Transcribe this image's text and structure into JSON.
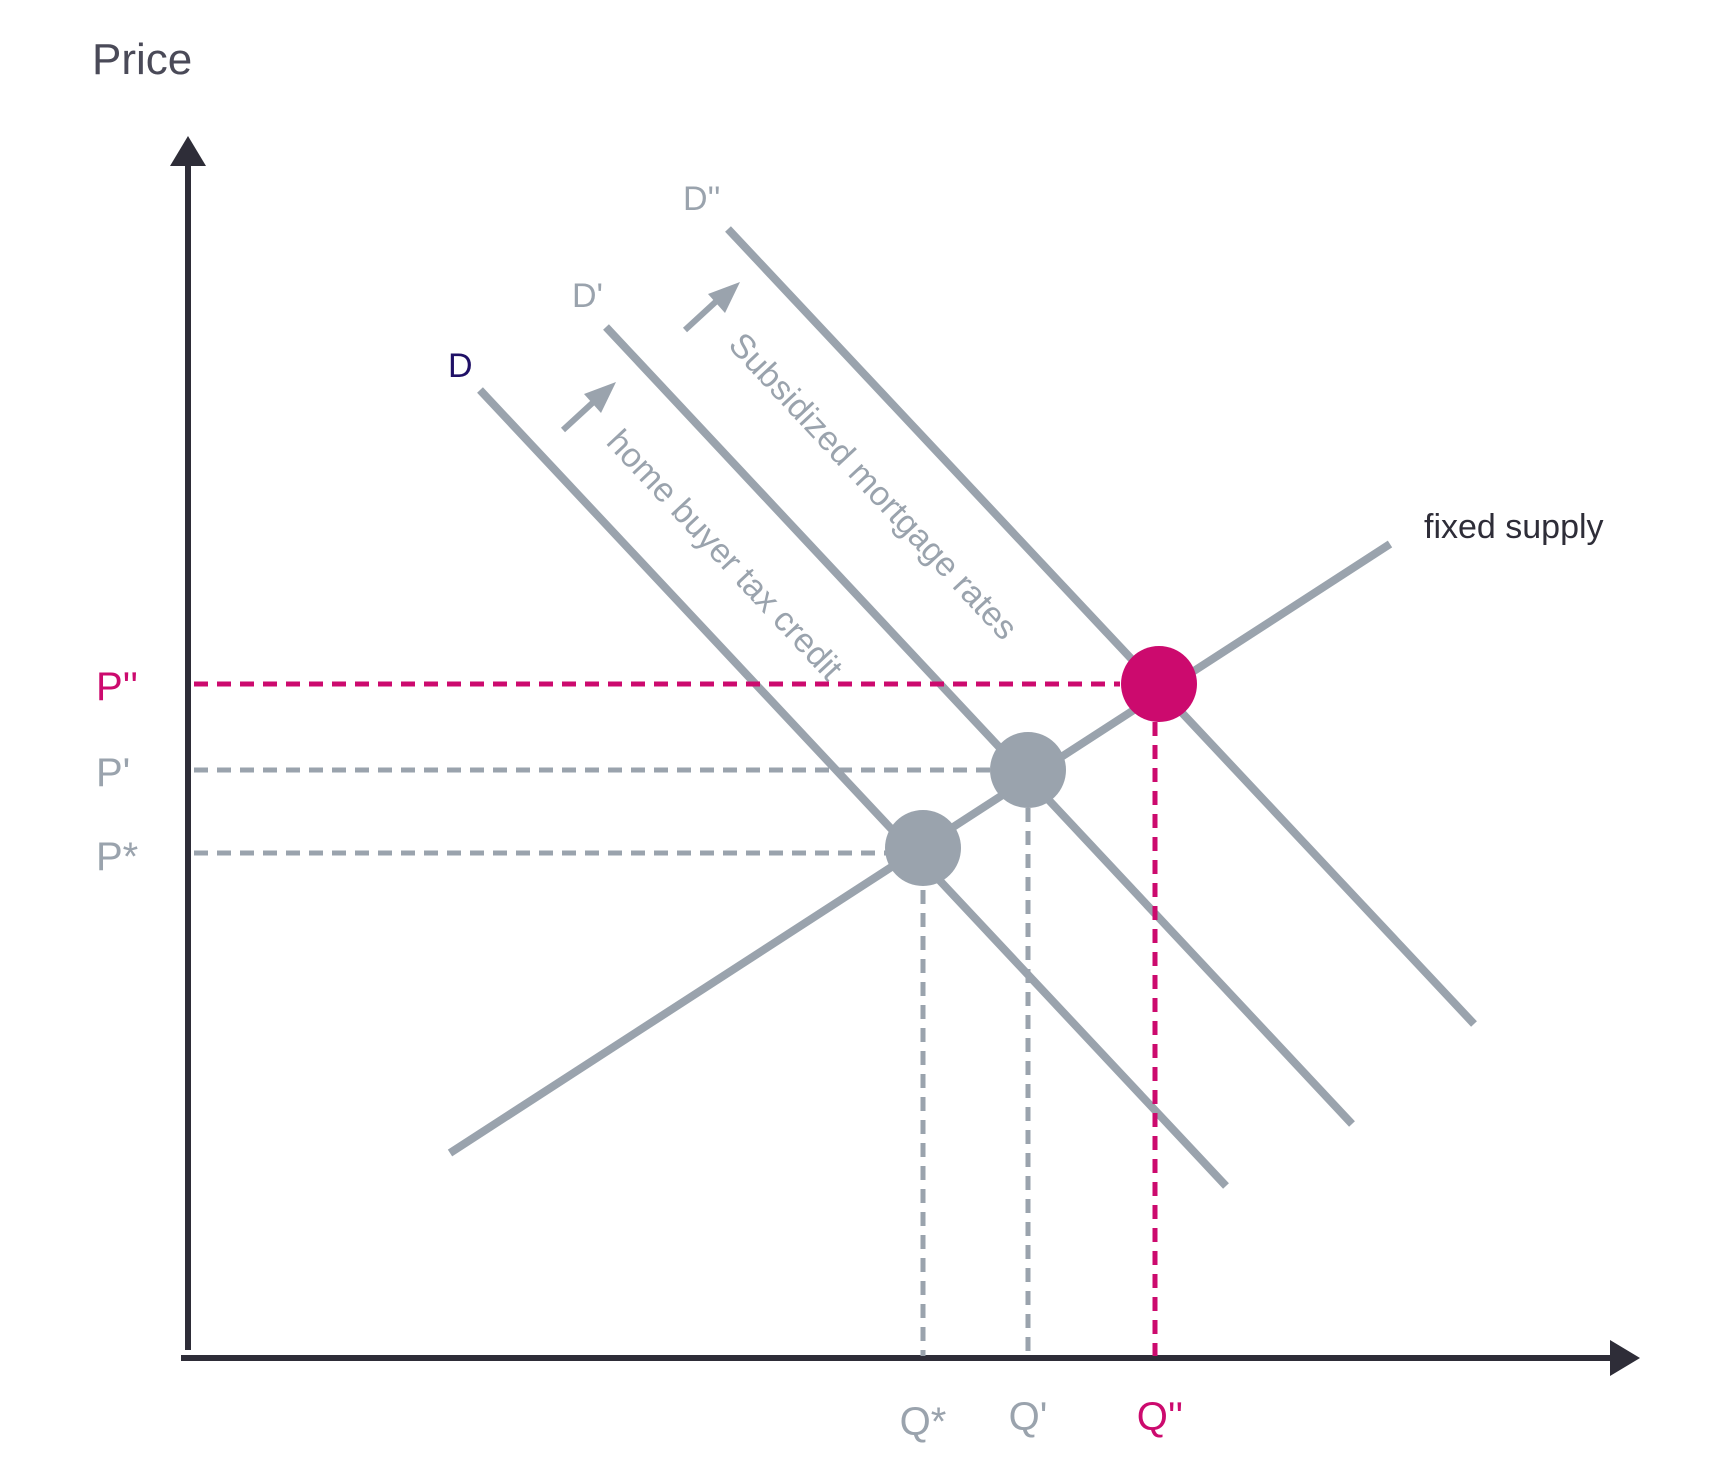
{
  "axes": {
    "y_label": "Price",
    "x_label": ""
  },
  "colors": {
    "axis": "#2e2d38",
    "curve": "#9aa3ad",
    "highlight": "#cc0a6e",
    "demand_label": "#1f1066",
    "supply_label": "#2e2d38"
  },
  "curves": {
    "supply_label": "fixed supply",
    "d_label": "D",
    "d1_label": "D'",
    "d2_label": "D''"
  },
  "annotations": {
    "shift1": "home buyer tax credit",
    "shift2": "Subsidized mortgage rates"
  },
  "price_ticks": {
    "p0": "P*",
    "p1": "P'",
    "p2": "P''"
  },
  "quantity_ticks": {
    "q0": "Q*",
    "q1": "Q'",
    "q2": "Q''"
  },
  "equilibria": [
    {
      "price": "P*",
      "quantity": "Q*",
      "highlighted": false
    },
    {
      "price": "P'",
      "quantity": "Q'",
      "highlighted": false
    },
    {
      "price": "P''",
      "quantity": "Q''",
      "highlighted": true
    }
  ]
}
